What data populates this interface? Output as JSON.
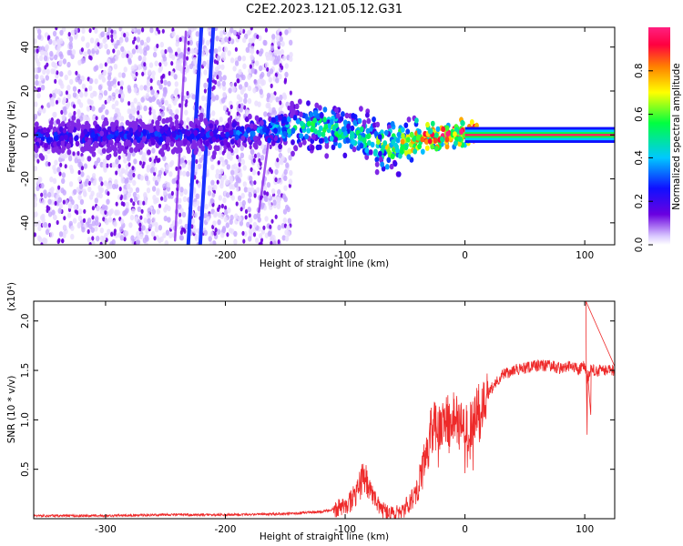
{
  "title": "C2E2.2023.121.05.12.G31",
  "colors": {
    "axis": "#000000",
    "snr_line": "#ee2a2a",
    "plasma_dots": "#6b00e0",
    "band_core": "#ff2060"
  },
  "chart_data": [
    {
      "type": "heatmap",
      "title": "",
      "xlabel": "Height of straight line (km)",
      "ylabel": "Frequency (Hz)",
      "xlim": [
        -360,
        125
      ],
      "ylim": [
        -50,
        49
      ],
      "xticks": [
        -300,
        -200,
        -100,
        0,
        100
      ],
      "yticks": [
        -40,
        -20,
        0,
        20,
        40
      ],
      "grid": false,
      "colorbar": {
        "label": "Normalized spectral amplitude",
        "range": [
          0,
          1
        ],
        "ticks": [
          "0.0",
          "0.2",
          "0.4",
          "0.6",
          "0.8"
        ],
        "colormap": [
          "#7000d0",
          "#0000ff",
          "#00c8ff",
          "#00ff60",
          "#ffff00",
          "#ff8000",
          "#ff0040",
          "#ff00a0"
        ]
      },
      "features": {
        "noise_region_x": [
          -360,
          -145
        ],
        "tilted_streaks": [
          {
            "x": [
              -231,
              -220
            ],
            "y": [
              -50,
              49
            ]
          },
          {
            "x": [
              -221,
              -210
            ],
            "y": [
              -50,
              49
            ]
          },
          {
            "x": [
              -242,
              -233
            ],
            "y": [
              -48,
              47
            ]
          },
          {
            "x": [
              -172,
              -162
            ],
            "y": [
              -35,
              5
            ]
          }
        ],
        "signal_track": [
          {
            "x": -360,
            "y": -1,
            "amp": 0.3
          },
          {
            "x": -200,
            "y": 0,
            "amp": 0.3
          },
          {
            "x": -150,
            "y": 3,
            "amp": 0.45
          },
          {
            "x": -120,
            "y": 4,
            "amp": 0.6
          },
          {
            "x": -100,
            "y": 1,
            "amp": 0.55
          },
          {
            "x": -80,
            "y": -2,
            "amp": 0.6
          },
          {
            "x": -60,
            "y": -6,
            "amp": 0.7
          },
          {
            "x": -40,
            "y": -2,
            "amp": 0.85
          },
          {
            "x": -20,
            "y": 0,
            "amp": 0.9
          },
          {
            "x": 0,
            "y": 1,
            "amp": 0.95
          },
          {
            "x": 125,
            "y": 0,
            "amp": 1.0
          }
        ]
      }
    },
    {
      "type": "line",
      "title": "",
      "xlabel": "Height of straight line (km)",
      "ylabel": "SNR (10 * v/v)",
      "scale_label": "(x10⁴)",
      "xlim": [
        -360,
        125
      ],
      "ylim": [
        0,
        2.2
      ],
      "xticks": [
        -300,
        -200,
        -100,
        0,
        100
      ],
      "yticks": [
        0.5,
        1.0,
        1.5,
        2.0
      ],
      "ytick_labels": [
        "0.5",
        "1.0",
        "1.5",
        "2.0"
      ],
      "grid": false,
      "series": [
        {
          "x": [
            -360,
            -300,
            -250,
            -200,
            -150,
            -120,
            -100,
            -90,
            -85,
            -80,
            -75,
            -70,
            -65,
            -60,
            -55,
            -50,
            -45,
            -40,
            -35,
            -32,
            -30,
            -25,
            -20,
            -15,
            -10,
            -5,
            0,
            5,
            10,
            15,
            20,
            25,
            30,
            40,
            50,
            60,
            70,
            80,
            90,
            95,
            100,
            102,
            105,
            110,
            120,
            125
          ],
          "y": [
            0.03,
            0.03,
            0.04,
            0.04,
            0.05,
            0.07,
            0.12,
            0.25,
            0.45,
            0.3,
            0.2,
            0.1,
            0.06,
            0.05,
            0.07,
            0.1,
            0.2,
            0.3,
            0.5,
            0.7,
            0.85,
            0.95,
            0.9,
            1.0,
            1.05,
            1.0,
            0.9,
            0.95,
            1.1,
            1.2,
            1.3,
            1.35,
            1.45,
            1.5,
            1.52,
            1.55,
            1.55,
            1.52,
            1.55,
            1.5,
            1.55,
            1.4,
            1.5,
            1.5,
            1.5,
            1.5
          ]
        }
      ],
      "spikes": [
        {
          "x": 101,
          "y": 2.2
        },
        {
          "x": 102,
          "y": 0.85
        },
        {
          "x": 105,
          "y": 1.05
        }
      ]
    }
  ]
}
